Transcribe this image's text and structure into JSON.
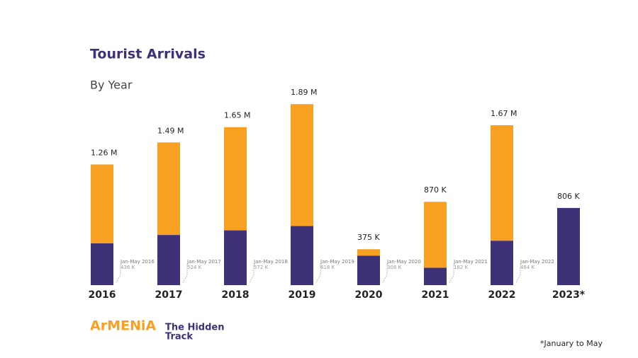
{
  "chart_data": {
    "type": "bar",
    "stacked": true,
    "title": "Tourist Arrivals",
    "subtitle": "By Year",
    "categories": [
      "2016",
      "2017",
      "2018",
      "2019",
      "2020",
      "2021",
      "2022",
      "2023*"
    ],
    "series": [
      {
        "color": "#3f3176",
        "values": [
          436000,
          524000,
          572000,
          618000,
          308000,
          182000,
          464000,
          806000
        ],
        "value_labels": [
          "436 K",
          "524 K",
          "572 K",
          "618 K",
          "308 K",
          "182 K",
          "464 K",
          null
        ],
        "annotations": [
          "Jan-May 2016",
          "Jan-May 2017",
          "Jan-May 2018",
          "Jan-May 2019",
          "Jan-May 2020",
          "Jan-May 2021",
          "Jan-May 2022",
          null
        ]
      },
      {
        "color": "#f7a021",
        "values": [
          824000,
          966000,
          1078000,
          1272000,
          67000,
          688000,
          1206000,
          0
        ]
      }
    ],
    "totals": {
      "values": [
        1260000,
        1490000,
        1650000,
        1890000,
        375000,
        870000,
        1670000,
        806000
      ],
      "value_labels": [
        "1.26 M",
        "1.49 M",
        "1.65 M",
        "1.89 M",
        "375 K",
        "870 K",
        "1.67 M",
        "806 K"
      ]
    },
    "ylim": [
      0,
      2000000
    ],
    "footnote": "*January to May"
  },
  "logo": {
    "brand": "ArMENiA",
    "tagline": [
      "The Hidden",
      "Track"
    ]
  }
}
